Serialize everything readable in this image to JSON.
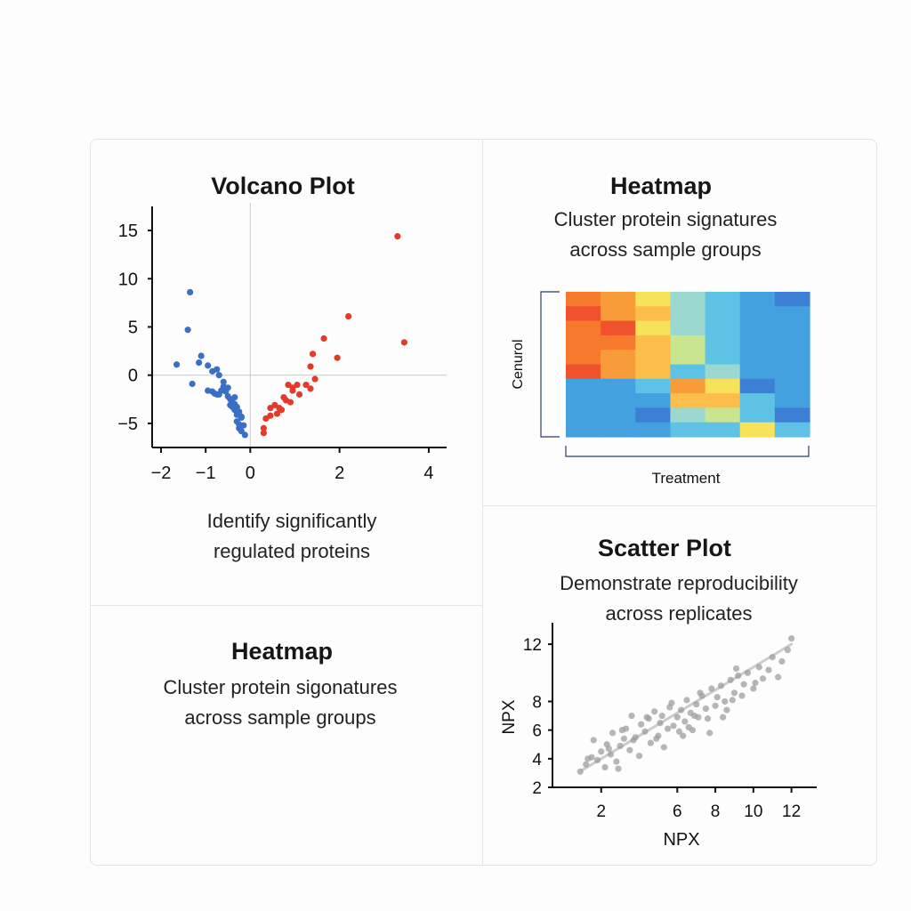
{
  "panels": {
    "volcano": {
      "title": "Volcano Plot",
      "caption_line1": "Identify significantly",
      "caption_line2": "regulated proteins"
    },
    "heatmap_top": {
      "title": "Heatmap",
      "subtitle_line1": "Cluster protein signatures",
      "subtitle_line2": "across sample groups"
    },
    "heatmap_bottom": {
      "title": "Heatmap",
      "subtitle_line1": "Cluster protein sigonatures",
      "subtitle_line2": "across sample groups"
    },
    "scatter": {
      "title": "Scatter Plot",
      "subtitle_line1": "Demonstrate reproducibility",
      "subtitle_line2": "across replicates"
    }
  },
  "footer": {
    "text": ""
  },
  "colors": {
    "down": "#3a70c4",
    "up": "#e33b2a",
    "scatter_point": "#9e9e9e",
    "trend": "#cccccc",
    "axis": "#111111",
    "reference": "#c8c8c8"
  },
  "chart_data": [
    {
      "type": "scatter",
      "name": "volcano",
      "title": "Volcano Plot",
      "xlabel": "",
      "ylabel": "",
      "xlim": [
        -2.2,
        4.4
      ],
      "ylim": [
        -7.5,
        17.5
      ],
      "xticks": [
        -2,
        -1,
        0,
        2,
        4
      ],
      "xtick_labels": [
        "−2",
        "−1",
        "0",
        "2",
        "4"
      ],
      "yticks": [
        15,
        10,
        5,
        0,
        -5
      ],
      "ytick_labels": [
        "15",
        "10",
        "5",
        "0",
        "−5"
      ],
      "series": [
        {
          "name": "down-regulated",
          "color": "#3a70c4",
          "x": [
            -1.35,
            -1.4,
            -1.65,
            -1.1,
            -0.95,
            -1.3,
            -1.15,
            -0.85,
            -0.75,
            -0.7,
            -0.95,
            -0.85,
            -0.8,
            -0.7,
            -0.65,
            -0.55,
            -0.6,
            -0.5,
            -0.45,
            -0.4,
            -0.35,
            -0.3,
            -0.35,
            -0.25,
            -0.3,
            -0.2,
            -0.4,
            -0.45,
            -0.3,
            -0.25,
            -0.25,
            -0.2,
            -0.2,
            -0.15,
            -0.12,
            -0.35,
            -0.5,
            -0.6,
            -0.75
          ],
          "y": [
            8.6,
            4.7,
            1.1,
            2.0,
            1.0,
            -0.9,
            1.3,
            0.4,
            0.6,
            0.0,
            -1.6,
            -1.7,
            -1.9,
            -2.0,
            -1.6,
            -1.7,
            -1.2,
            -2.2,
            -2.5,
            -2.8,
            -3.0,
            -3.3,
            -3.6,
            -3.8,
            -4.1,
            -4.4,
            -3.3,
            -3.1,
            -4.8,
            -5.1,
            -5.5,
            -5.8,
            -4.3,
            -5.2,
            -6.2,
            -2.3,
            -1.3,
            -0.7,
            -2.0
          ]
        },
        {
          "name": "up-regulated",
          "color": "#e33b2a",
          "x": [
            3.3,
            2.2,
            3.45,
            1.65,
            1.4,
            1.95,
            1.35,
            1.45,
            1.05,
            1.25,
            0.95,
            0.85,
            0.95,
            1.35,
            1.1,
            0.75,
            0.9,
            0.55,
            0.45,
            0.35,
            0.7,
            0.6,
            0.3,
            0.3,
            0.45,
            0.65,
            0.8
          ],
          "y": [
            14.4,
            6.1,
            3.4,
            3.8,
            2.2,
            1.8,
            0.9,
            -0.4,
            -1.0,
            -1.0,
            -1.3,
            -1.0,
            -1.6,
            -1.4,
            -2.0,
            -2.3,
            -2.8,
            -3.1,
            -3.4,
            -4.5,
            -3.6,
            -4.0,
            -5.5,
            -6.0,
            -4.2,
            -3.4,
            -2.6
          ]
        }
      ]
    },
    {
      "type": "heatmap",
      "name": "heatmap",
      "title": "Heatmap",
      "xlabel": "Treatment",
      "ylabel": "Cenurol",
      "colormap": [
        "#3d7fd4",
        "#44a1e0",
        "#5ec2e6",
        "#9bd8d0",
        "#c9e590",
        "#f8e25a",
        "#fbbe4a",
        "#f89c39",
        "#f6792e",
        "#f0522e"
      ],
      "values": [
        [
          8,
          7,
          5,
          3,
          2,
          1,
          0
        ],
        [
          9,
          7,
          6,
          3,
          2,
          1,
          1
        ],
        [
          8,
          9,
          5,
          3,
          2,
          1,
          1
        ],
        [
          8,
          8,
          6,
          4,
          2,
          1,
          1
        ],
        [
          8,
          7,
          6,
          4,
          2,
          1,
          1
        ],
        [
          9,
          7,
          6,
          2,
          3,
          1,
          1
        ],
        [
          1,
          1,
          2,
          7,
          5,
          0,
          1
        ],
        [
          1,
          1,
          1,
          6,
          6,
          2,
          1
        ],
        [
          1,
          1,
          0,
          3,
          4,
          2,
          0
        ],
        [
          1,
          1,
          1,
          2,
          2,
          5,
          2
        ]
      ]
    },
    {
      "type": "scatter",
      "name": "reproducibility",
      "title": "Scatter Plot",
      "xlabel": "NPX",
      "ylabel": "NPX",
      "xlim": [
        0,
        13
      ],
      "ylim": [
        2,
        13.5
      ],
      "xticks": [
        2,
        6,
        8,
        10,
        12
      ],
      "xtick_labels": [
        "2",
        "6",
        "8",
        "10",
        "12"
      ],
      "yticks": [
        12,
        8,
        6,
        4,
        2
      ],
      "ytick_labels": [
        "12",
        "8",
        "6",
        "4",
        "2"
      ],
      "trend": {
        "x": [
          1,
          12
        ],
        "y": [
          3.2,
          12
        ]
      },
      "x": [
        0.9,
        1.2,
        1.5,
        1.6,
        1.8,
        2.0,
        2.2,
        2.3,
        2.5,
        2.6,
        2.8,
        3.0,
        3.2,
        3.3,
        3.5,
        3.6,
        3.8,
        4.0,
        4.1,
        4.3,
        4.5,
        4.6,
        4.8,
        5.0,
        5.1,
        5.3,
        5.5,
        5.6,
        5.8,
        6.0,
        6.1,
        6.2,
        6.4,
        6.5,
        6.7,
        6.8,
        7.0,
        7.1,
        7.3,
        7.5,
        7.6,
        7.8,
        8.0,
        8.1,
        8.3,
        8.5,
        8.6,
        8.8,
        9.0,
        9.2,
        9.4,
        9.5,
        9.7,
        10.0,
        10.3,
        10.5,
        10.8,
        11.0,
        11.3,
        11.5,
        11.8,
        12.0,
        2.4,
        3.1,
        4.4,
        5.2,
        6.3,
        7.2,
        8.4,
        9.1,
        10.1,
        3.7,
        5.7,
        6.6,
        7.7,
        8.9,
        4.9,
        6.9,
        1.3,
        2.9
      ],
      "y": [
        3.1,
        3.6,
        4.1,
        5.3,
        3.9,
        4.5,
        3.4,
        5.0,
        4.3,
        5.8,
        3.8,
        4.9,
        5.4,
        6.1,
        4.6,
        7.0,
        5.5,
        4.2,
        6.4,
        5.9,
        6.8,
        5.1,
        7.3,
        5.6,
        6.5,
        4.8,
        6.1,
        7.6,
        6.3,
        6.9,
        5.9,
        7.4,
        6.6,
        8.1,
        7.2,
        6.0,
        7.8,
        6.9,
        8.4,
        7.5,
        6.8,
        8.9,
        7.7,
        8.3,
        9.1,
        8.0,
        7.4,
        9.5,
        8.6,
        9.8,
        8.4,
        9.2,
        10.0,
        8.9,
        10.4,
        9.6,
        10.2,
        11.1,
        9.7,
        10.8,
        11.6,
        12.4,
        4.7,
        6.0,
        6.9,
        7.0,
        5.6,
        8.6,
        6.9,
        10.3,
        9.3,
        5.3,
        7.9,
        6.2,
        5.8,
        8.1,
        5.4,
        7.0,
        4.0,
        3.3
      ]
    }
  ]
}
